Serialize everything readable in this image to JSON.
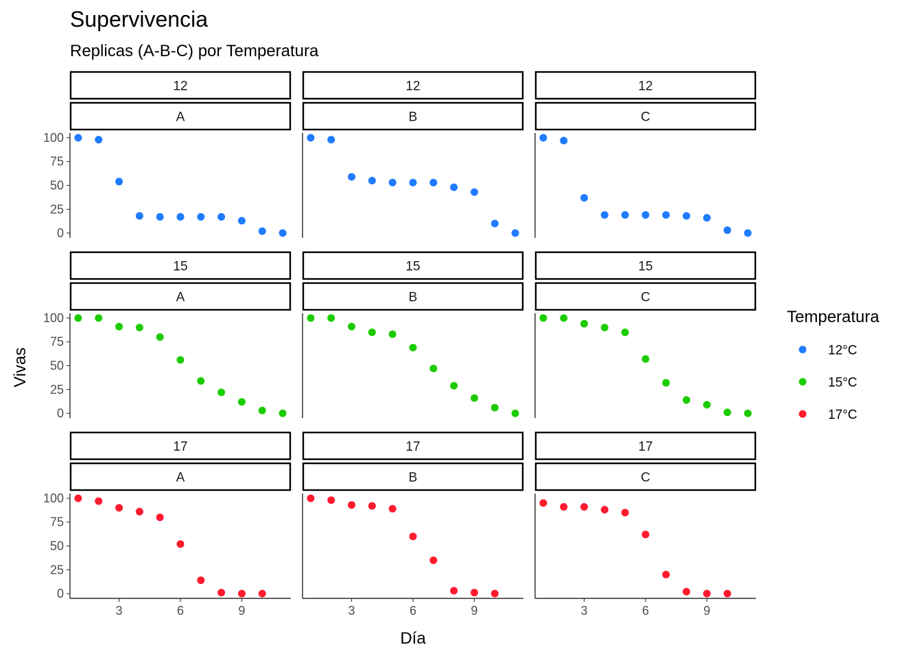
{
  "chart_data": {
    "type": "scatter",
    "title": "Supervivencia",
    "subtitle": "Replicas (A-B-C) por Temperatura",
    "xlabel": "Día",
    "ylabel": "Vivas",
    "xlim": [
      0.6,
      11.4
    ],
    "ylim": [
      -5,
      105
    ],
    "x_ticks": [
      3,
      6,
      9
    ],
    "y_ticks": [
      0,
      25,
      50,
      75,
      100
    ],
    "grid": false,
    "facet_rows": [
      "12",
      "15",
      "17"
    ],
    "facet_cols": [
      "A",
      "B",
      "C"
    ],
    "legend": {
      "title": "Temperatura",
      "placement": "right",
      "entries": [
        {
          "label": "12°C",
          "color": "#1f7bff"
        },
        {
          "label": "15°C",
          "color": "#1dcc00"
        },
        {
          "label": "17°C",
          "color": "#ff1a2e"
        }
      ]
    },
    "panels": [
      {
        "temp": "12",
        "rep": "A",
        "x": [
          1,
          2,
          3,
          4,
          5,
          6,
          7,
          8,
          9,
          10,
          11
        ],
        "y": [
          100,
          98,
          54,
          18,
          17,
          17,
          17,
          17,
          13,
          2,
          0
        ]
      },
      {
        "temp": "12",
        "rep": "B",
        "x": [
          1,
          2,
          3,
          4,
          5,
          6,
          7,
          8,
          9,
          10,
          11
        ],
        "y": [
          100,
          98,
          59,
          55,
          53,
          53,
          53,
          48,
          43,
          10,
          0
        ]
      },
      {
        "temp": "12",
        "rep": "C",
        "x": [
          1,
          2,
          3,
          4,
          5,
          6,
          7,
          8,
          9,
          10,
          11
        ],
        "y": [
          100,
          97,
          37,
          19,
          19,
          19,
          19,
          18,
          16,
          3,
          0
        ]
      },
      {
        "temp": "15",
        "rep": "A",
        "x": [
          1,
          2,
          3,
          4,
          5,
          6,
          7,
          8,
          9,
          10,
          11
        ],
        "y": [
          100,
          100,
          91,
          90,
          80,
          56,
          34,
          22,
          12,
          3,
          0
        ]
      },
      {
        "temp": "15",
        "rep": "B",
        "x": [
          1,
          2,
          3,
          4,
          5,
          6,
          7,
          8,
          9,
          10,
          11
        ],
        "y": [
          100,
          100,
          91,
          85,
          83,
          69,
          47,
          29,
          16,
          6,
          0
        ]
      },
      {
        "temp": "15",
        "rep": "C",
        "x": [
          1,
          2,
          3,
          4,
          5,
          6,
          7,
          8,
          9,
          10,
          11
        ],
        "y": [
          100,
          100,
          94,
          90,
          85,
          57,
          32,
          14,
          9,
          1,
          0
        ]
      },
      {
        "temp": "17",
        "rep": "A",
        "x": [
          1,
          2,
          3,
          4,
          5,
          6,
          7,
          8,
          9,
          10
        ],
        "y": [
          100,
          97,
          90,
          86,
          80,
          52,
          14,
          1,
          0,
          0
        ]
      },
      {
        "temp": "17",
        "rep": "B",
        "x": [
          1,
          2,
          3,
          4,
          5,
          6,
          7,
          8,
          9,
          10
        ],
        "y": [
          100,
          98,
          93,
          92,
          89,
          60,
          35,
          3,
          1,
          0
        ]
      },
      {
        "temp": "17",
        "rep": "C",
        "x": [
          1,
          2,
          3,
          4,
          5,
          6,
          7,
          8,
          9,
          10
        ],
        "y": [
          95,
          91,
          91,
          88,
          85,
          62,
          20,
          2,
          0,
          0
        ]
      }
    ]
  }
}
